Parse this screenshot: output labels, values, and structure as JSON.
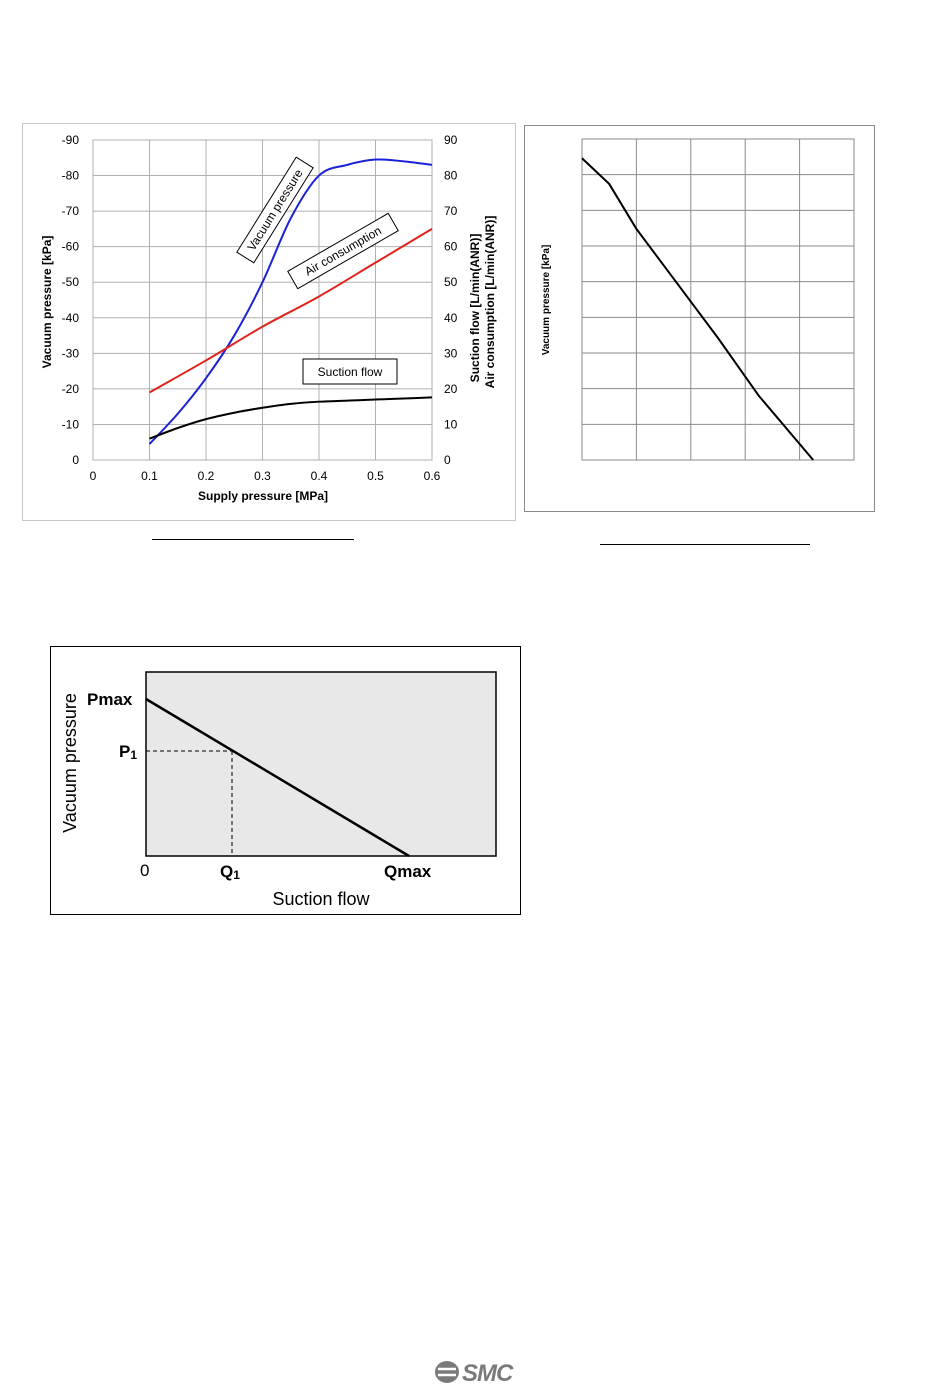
{
  "chart_data": [
    {
      "type": "line",
      "xlabel": "Supply pressure [MPa]",
      "ylabel_left": "Vacuum pressure [kPa]",
      "ylabel_right_1": "Suction flow   [L/min(ANR)]",
      "ylabel_right_2": "Air consumption [L/min(ANR)]",
      "xlim": [
        0,
        0.6
      ],
      "ylim_left": [
        0,
        -90
      ],
      "ylim_right": [
        0,
        90
      ],
      "x_ticks": [
        "0",
        "0.1",
        "0.2",
        "0.3",
        "0.4",
        "0.5",
        "0.6"
      ],
      "y_left_ticks": [
        "0",
        "-10",
        "-20",
        "-30",
        "-40",
        "-50",
        "-60",
        "-70",
        "-80",
        "-90"
      ],
      "y_right_ticks": [
        "0",
        "10",
        "20",
        "30",
        "40",
        "50",
        "60",
        "70",
        "80",
        "90"
      ],
      "grid": true,
      "series": [
        {
          "name": "Vacuum pressure",
          "color": "#1a22d8",
          "x": [
            0.1,
            0.15,
            0.2,
            0.25,
            0.3,
            0.35,
            0.4,
            0.45,
            0.5,
            0.55,
            0.6
          ],
          "y": [
            -4.5,
            -13,
            -23,
            -35,
            -50,
            -68,
            -80,
            -83,
            -84.5,
            -84,
            -83
          ]
        },
        {
          "name": "Air consumption",
          "color": "#e0241b",
          "x": [
            0.1,
            0.2,
            0.3,
            0.4,
            0.5,
            0.6
          ],
          "y": [
            19,
            28,
            37.5,
            46,
            55.5,
            65
          ]
        },
        {
          "name": "Suction flow",
          "color": "#000000",
          "x": [
            0.1,
            0.15,
            0.2,
            0.25,
            0.3,
            0.35,
            0.4,
            0.45,
            0.5,
            0.55,
            0.6
          ],
          "y": [
            6,
            9,
            11.5,
            13.3,
            14.7,
            15.8,
            16.4,
            16.7,
            17,
            17.3,
            17.6
          ]
        }
      ],
      "annotations": [
        "Vacuum pressure",
        "Air consumption",
        "Suction flow"
      ]
    },
    {
      "type": "line",
      "ylabel": "Vacuum pressure  [kPa]",
      "grid": true,
      "series": [
        {
          "color": "#000000",
          "x": [
            0,
            0.25,
            0.5,
            0.75,
            1.0,
            1.25,
            1.5,
            1.75
          ],
          "y": [
            0.84,
            0.78,
            0.71,
            0.62,
            0.51,
            0.38,
            0.25,
            0.12
          ]
        }
      ],
      "points_x_norm": [
        0.0,
        0.1,
        0.2,
        0.35,
        0.5,
        0.65,
        0.85
      ],
      "points_y_norm": [
        0.94,
        0.86,
        0.72,
        0.55,
        0.38,
        0.2,
        0.0
      ]
    },
    {
      "type": "line",
      "xlabel": "Suction flow",
      "ylabel": "Vacuum pressure",
      "labels": {
        "pmax": "Pmax",
        "p1": "P",
        "p1_sub": "1",
        "zero": "0",
        "q1": "Q",
        "q1_sub": "1",
        "qmax": "Qmax"
      },
      "background": "#e8e8e8"
    }
  ],
  "logo": {
    "text": "SMC"
  }
}
